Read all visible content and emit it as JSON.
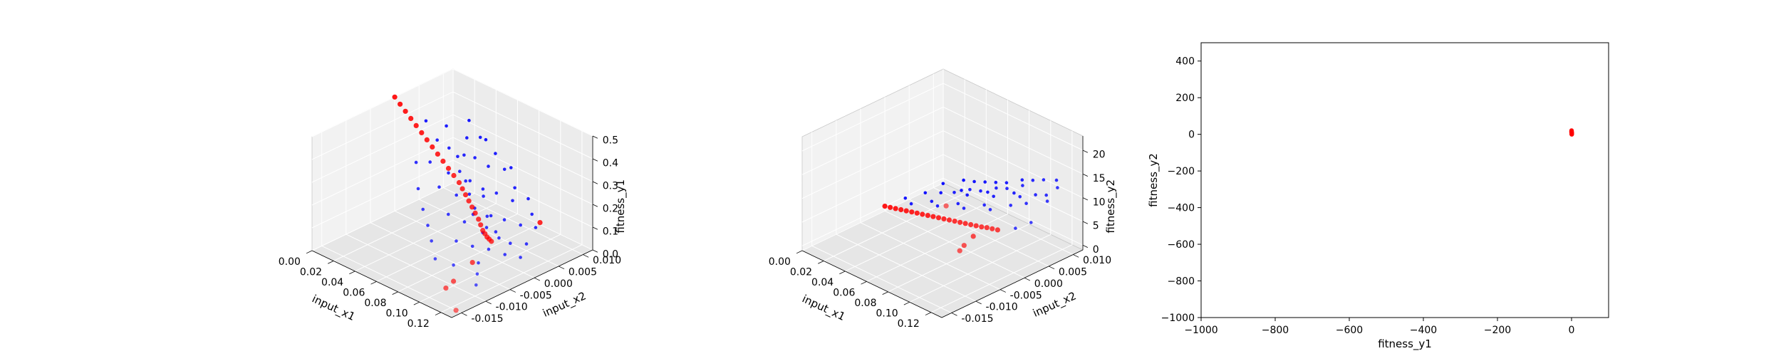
{
  "chart_data": [
    {
      "type": "scatter",
      "projection": "3d",
      "xlabel": "input_x1",
      "ylabel": "input_x2",
      "zlabel": "fitness_y1",
      "xlim": [
        0.0,
        0.13
      ],
      "ylim": [
        -0.017,
        0.012
      ],
      "zlim": [
        0.0,
        0.5
      ],
      "xticks": [
        "0.00",
        "0.02",
        "0.04",
        "0.06",
        "0.08",
        "0.10",
        "0.12"
      ],
      "yticks": [
        "-0.015",
        "-0.010",
        "-0.005",
        "0.000",
        "0.005",
        "0.010"
      ],
      "zticks": [
        "0.0",
        "0.1",
        "0.2",
        "0.3",
        "0.4",
        "0.5"
      ],
      "grid": true,
      "series": [
        {
          "color": "#0000ff",
          "points": [
            [
              0.02,
              0.002,
              0.42
            ],
            [
              0.03,
              0.004,
              0.4
            ],
            [
              0.035,
              0.001,
              0.38
            ],
            [
              0.04,
              0.006,
              0.35
            ],
            [
              0.042,
              -0.002,
              0.33
            ],
            [
              0.045,
              0.003,
              0.31
            ],
            [
              0.048,
              0.007,
              0.36
            ],
            [
              0.05,
              0.0,
              0.28
            ],
            [
              0.052,
              0.005,
              0.3
            ],
            [
              0.055,
              -0.003,
              0.26
            ],
            [
              0.057,
              0.002,
              0.24
            ],
            [
              0.06,
              0.006,
              0.27
            ],
            [
              0.062,
              -0.001,
              0.22
            ],
            [
              0.064,
              0.004,
              0.2
            ],
            [
              0.066,
              0.008,
              0.25
            ],
            [
              0.068,
              -0.004,
              0.18
            ],
            [
              0.07,
              0.001,
              0.16
            ],
            [
              0.072,
              0.005,
              0.19
            ],
            [
              0.074,
              -0.002,
              0.14
            ],
            [
              0.076,
              0.003,
              0.12
            ],
            [
              0.078,
              0.007,
              0.15
            ],
            [
              0.08,
              -0.005,
              0.1
            ],
            [
              0.082,
              0.0,
              0.09
            ],
            [
              0.084,
              0.004,
              0.11
            ],
            [
              0.086,
              -0.003,
              0.07
            ],
            [
              0.088,
              0.002,
              0.06
            ],
            [
              0.09,
              0.006,
              0.08
            ],
            [
              0.092,
              -0.001,
              0.05
            ],
            [
              0.094,
              0.003,
              0.04
            ],
            [
              0.096,
              -0.004,
              0.03
            ],
            [
              0.098,
              0.001,
              0.02
            ],
            [
              0.1,
              0.005,
              0.03
            ],
            [
              0.033,
              0.008,
              0.39
            ],
            [
              0.038,
              -0.004,
              0.34
            ],
            [
              0.044,
              0.009,
              0.32
            ],
            [
              0.049,
              -0.006,
              0.27
            ],
            [
              0.053,
              0.009,
              0.28
            ],
            [
              0.058,
              -0.007,
              0.21
            ],
            [
              0.063,
              0.01,
              0.23
            ],
            [
              0.067,
              -0.008,
              0.17
            ],
            [
              0.071,
              0.009,
              0.17
            ],
            [
              0.075,
              -0.009,
              0.13
            ],
            [
              0.079,
              0.01,
              0.13
            ],
            [
              0.083,
              -0.01,
              0.08
            ],
            [
              0.087,
              0.009,
              0.09
            ],
            [
              0.091,
              -0.008,
              0.05
            ],
            [
              0.095,
              0.008,
              0.06
            ],
            [
              0.104,
              -0.006,
              0.02
            ],
            [
              0.108,
              0.002,
              0.02
            ],
            [
              0.112,
              -0.008,
              0.01
            ],
            [
              0.046,
              0.001,
              0.37
            ],
            [
              0.051,
              0.003,
              0.33
            ],
            [
              0.056,
              0.001,
              0.29
            ],
            [
              0.061,
              0.002,
              0.25
            ],
            [
              0.065,
              0.001,
              0.21
            ],
            [
              0.069,
              0.003,
              0.19
            ],
            [
              0.073,
              0.0,
              0.15
            ],
            [
              0.077,
              0.002,
              0.13
            ],
            [
              0.081,
              0.001,
              0.1
            ],
            [
              0.085,
              0.002,
              0.08
            ]
          ]
        },
        {
          "color": "#ff0000",
          "points": [
            [
              0.0,
              0.0,
              0.5
            ],
            [
              0.005,
              0.0,
              0.48
            ],
            [
              0.01,
              0.0,
              0.46
            ],
            [
              0.015,
              0.0,
              0.44
            ],
            [
              0.02,
              0.0,
              0.42
            ],
            [
              0.025,
              0.0,
              0.4
            ],
            [
              0.03,
              0.0,
              0.38
            ],
            [
              0.035,
              0.0,
              0.36
            ],
            [
              0.04,
              0.0,
              0.34
            ],
            [
              0.045,
              0.0,
              0.32
            ],
            [
              0.05,
              0.0,
              0.3
            ],
            [
              0.055,
              0.0,
              0.28
            ],
            [
              0.06,
              0.0,
              0.26
            ],
            [
              0.063,
              0.0,
              0.24
            ],
            [
              0.066,
              0.0,
              0.22
            ],
            [
              0.069,
              0.0,
              0.2
            ],
            [
              0.072,
              0.0,
              0.18
            ],
            [
              0.075,
              0.0,
              0.16
            ],
            [
              0.078,
              0.0,
              0.14
            ],
            [
              0.08,
              0.0,
              0.12
            ],
            [
              0.082,
              0.0,
              0.1
            ],
            [
              0.084,
              0.0,
              0.09
            ],
            [
              0.086,
              0.0,
              0.08
            ],
            [
              0.088,
              0.0,
              0.075
            ],
            [
              0.09,
              0.0,
              0.07
            ],
            [
              0.09,
              0.01,
              0.05
            ],
            [
              0.095,
              -0.005,
              0.04
            ],
            [
              0.1,
              -0.01,
              0.02
            ],
            [
              0.102,
              -0.012,
              0.015
            ],
            [
              0.125,
              -0.015,
              0.0
            ]
          ]
        }
      ]
    },
    {
      "type": "scatter",
      "projection": "3d",
      "xlabel": "input_x1",
      "ylabel": "input_x2",
      "zlabel": "fitness_y2",
      "xlim": [
        0.0,
        0.13
      ],
      "ylim": [
        -0.017,
        0.012
      ],
      "zlim": [
        -1.0,
        23.0
      ],
      "xticks": [
        "0.00",
        "0.02",
        "0.04",
        "0.06",
        "0.08",
        "0.10",
        "0.12"
      ],
      "yticks": [
        "-0.015",
        "-0.010",
        "-0.005",
        "0.000",
        "0.005",
        "0.010"
      ],
      "zticks": [
        "0",
        "5",
        "10",
        "15",
        "20"
      ],
      "grid": true,
      "series": [
        {
          "color": "#0000ff",
          "points": [
            [
              0.01,
              0.002,
              1.8
            ],
            [
              0.015,
              0.005,
              2.0
            ],
            [
              0.02,
              0.001,
              2.2
            ],
            [
              0.025,
              0.006,
              2.6
            ],
            [
              0.03,
              0.003,
              2.8
            ],
            [
              0.035,
              0.008,
              3.2
            ],
            [
              0.04,
              0.002,
              3.4
            ],
            [
              0.045,
              0.007,
              3.8
            ],
            [
              0.05,
              0.004,
              4.0
            ],
            [
              0.055,
              0.009,
              4.5
            ],
            [
              0.06,
              0.003,
              4.6
            ],
            [
              0.065,
              0.008,
              5.2
            ],
            [
              0.07,
              0.005,
              5.4
            ],
            [
              0.075,
              0.01,
              6.0
            ],
            [
              0.08,
              0.004,
              6.0
            ],
            [
              0.085,
              0.009,
              6.8
            ],
            [
              0.09,
              0.006,
              7.0
            ],
            [
              0.095,
              0.01,
              7.8
            ],
            [
              0.1,
              0.007,
              8.0
            ],
            [
              0.105,
              0.01,
              8.8
            ],
            [
              0.018,
              0.008,
              2.8
            ],
            [
              0.028,
              0.01,
              3.6
            ],
            [
              0.038,
              0.01,
              4.4
            ],
            [
              0.048,
              0.01,
              5.4
            ],
            [
              0.058,
              0.01,
              6.4
            ],
            [
              0.068,
              0.01,
              7.4
            ],
            [
              0.078,
              0.011,
              8.6
            ],
            [
              0.088,
              0.011,
              9.6
            ],
            [
              0.098,
              0.011,
              10.8
            ],
            [
              0.11,
              0.011,
              12.0
            ],
            [
              0.042,
              0.005,
              5.0
            ],
            [
              0.052,
              0.006,
              6.2
            ],
            [
              0.062,
              0.006,
              7.0
            ],
            [
              0.072,
              0.007,
              8.2
            ],
            [
              0.082,
              0.007,
              9.2
            ],
            [
              0.092,
              0.008,
              10.4
            ],
            [
              0.115,
              0.008,
              9.6
            ],
            [
              0.118,
              0.004,
              7.4
            ],
            [
              0.12,
              0.009,
              12.5
            ],
            [
              0.108,
              0.003,
              5.6
            ]
          ]
        },
        {
          "color": "#ff0000",
          "points": [
            [
              0.0,
              0.0,
              0.0
            ],
            [
              0.005,
              0.0,
              0.3
            ],
            [
              0.01,
              0.0,
              0.6
            ],
            [
              0.015,
              0.0,
              0.9
            ],
            [
              0.02,
              0.0,
              1.2
            ],
            [
              0.025,
              0.0,
              1.5
            ],
            [
              0.03,
              0.0,
              1.8
            ],
            [
              0.035,
              0.0,
              2.1
            ],
            [
              0.04,
              0.0,
              2.4
            ],
            [
              0.045,
              0.0,
              2.7
            ],
            [
              0.05,
              0.0,
              3.0
            ],
            [
              0.055,
              0.0,
              3.3
            ],
            [
              0.06,
              0.0,
              3.6
            ],
            [
              0.065,
              0.0,
              3.9
            ],
            [
              0.07,
              0.0,
              4.2
            ],
            [
              0.075,
              0.0,
              4.5
            ],
            [
              0.08,
              0.0,
              4.8
            ],
            [
              0.085,
              0.0,
              5.1
            ],
            [
              0.09,
              0.0,
              5.4
            ],
            [
              0.095,
              0.0,
              5.8
            ],
            [
              0.1,
              0.0,
              6.1
            ],
            [
              0.105,
              0.0,
              6.4
            ],
            [
              0.105,
              -0.005,
              7.5
            ],
            [
              0.11,
              -0.008,
              7.6
            ],
            [
              0.115,
              -0.01,
              8.0
            ],
            [
              0.125,
              -0.015,
              21.0
            ]
          ]
        }
      ]
    },
    {
      "type": "scatter",
      "xlabel": "fitness_y1",
      "ylabel": "fitness_y2",
      "xlim": [
        -1000,
        100
      ],
      "ylim": [
        -1000,
        500
      ],
      "xticks": [
        -1000,
        -800,
        -600,
        -400,
        -200,
        0
      ],
      "xtick_labels": [
        "−1000",
        "−800",
        "−600",
        "−400",
        "−200",
        "0"
      ],
      "yticks": [
        -1000,
        -800,
        -600,
        -400,
        -200,
        0,
        200,
        400
      ],
      "ytick_labels": [
        "−1000",
        "−800",
        "−600",
        "−400",
        "−200",
        "0",
        "200",
        "400"
      ],
      "grid": false,
      "series": [
        {
          "color": "#ff0000",
          "points": [
            [
              0.5,
              0.0
            ],
            [
              0.45,
              1.5
            ],
            [
              0.4,
              3.0
            ],
            [
              0.35,
              4.5
            ],
            [
              0.3,
              6.0
            ],
            [
              0.25,
              7.5
            ],
            [
              0.2,
              9.0
            ],
            [
              0.15,
              10.5
            ],
            [
              0.1,
              12.0
            ],
            [
              0.05,
              14.0
            ],
            [
              0.02,
              17.0
            ],
            [
              0.0,
              21.0
            ]
          ]
        }
      ]
    }
  ]
}
